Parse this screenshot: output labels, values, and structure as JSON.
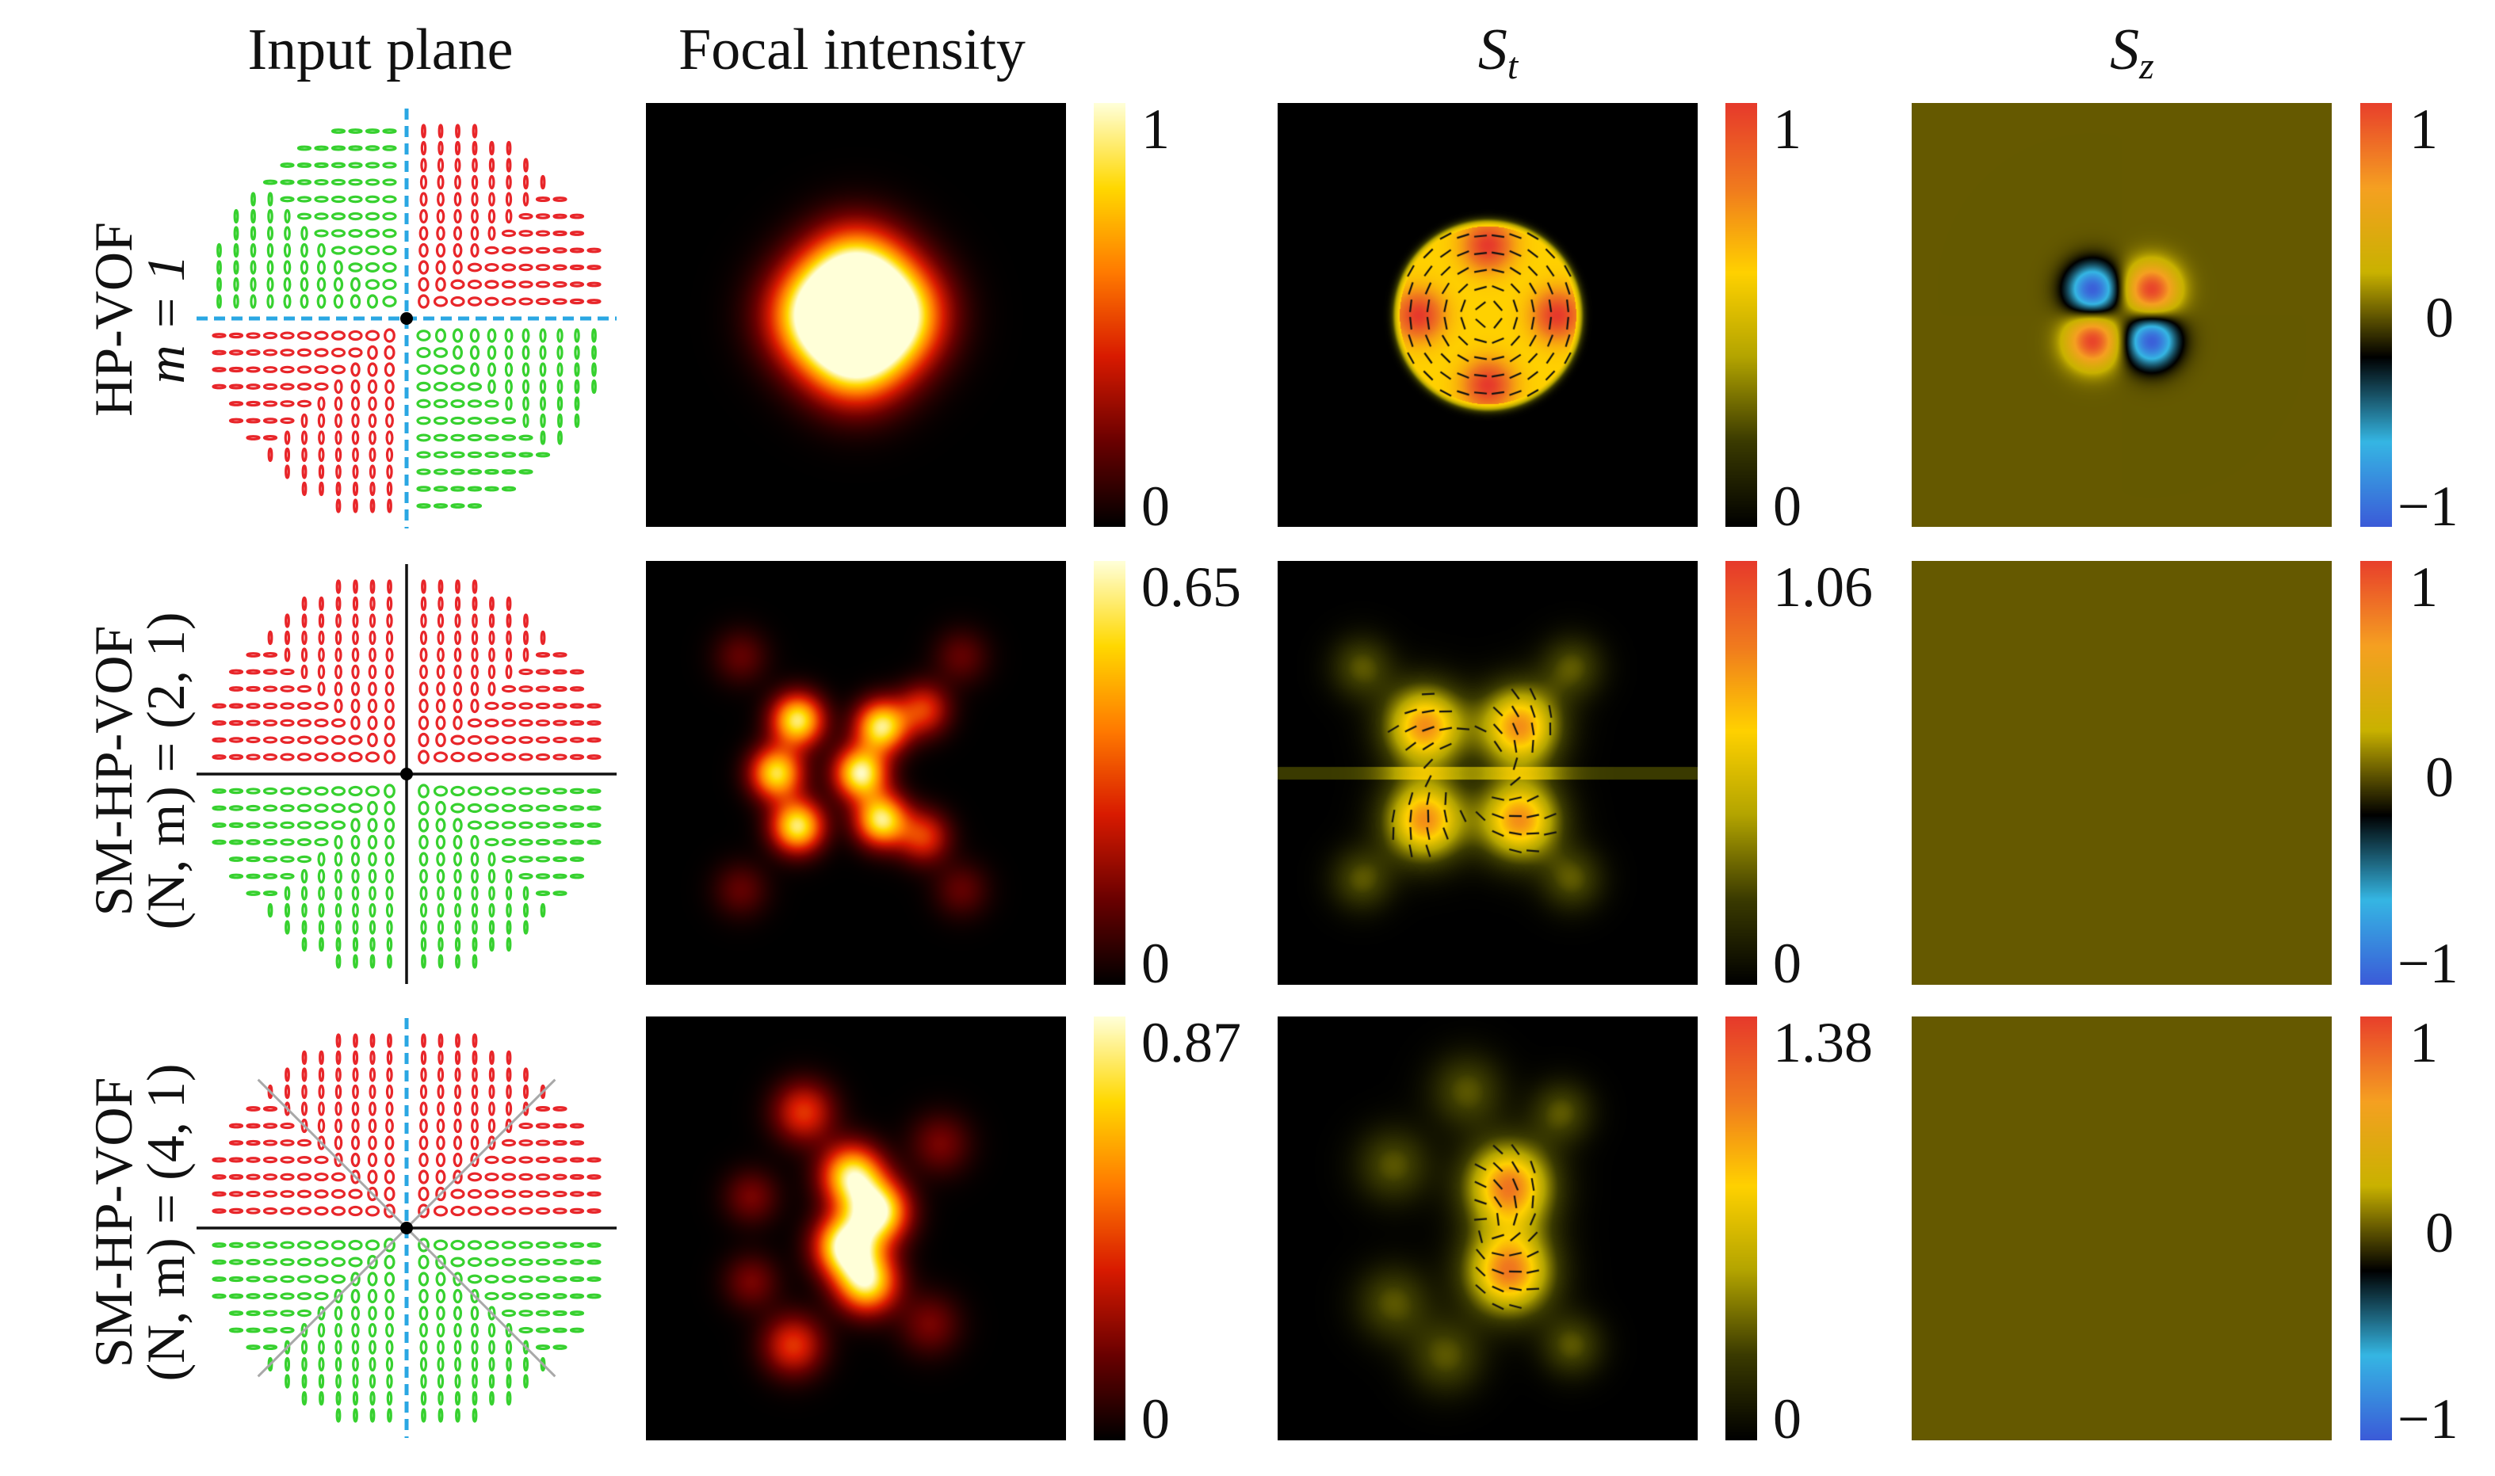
{
  "figure": {
    "column_titles": {
      "input": "Input plane",
      "focal": "Focal intensity",
      "st_base": "S",
      "st_sub": "t",
      "sz_base": "S",
      "sz_sub": "z"
    },
    "rows": [
      {
        "label_line1": "HP-VOF",
        "label_line2": "m = 1",
        "line2_italic": true,
        "focal_max": "1",
        "focal_min": "0",
        "st_max": "1",
        "st_min": "0",
        "sz_max": "1",
        "sz_mid": "0",
        "sz_min": "−1",
        "sz_field": "quadrupole"
      },
      {
        "label_line1": "SM-HP-VOF",
        "label_line2": "(N, m) = (2, 1)",
        "line2_italic": false,
        "focal_max": "0.65",
        "focal_min": "0",
        "st_max": "1.06",
        "st_min": "0",
        "sz_max": "1",
        "sz_mid": "0",
        "sz_min": "−1",
        "sz_field": "zero"
      },
      {
        "label_line1": "SM-HP-VOF",
        "label_line2": "(N, m) = (4, 1)",
        "line2_italic": false,
        "focal_max": "0.87",
        "focal_min": "0",
        "st_max": "1.38",
        "st_min": "0",
        "sz_max": "1",
        "sz_mid": "0",
        "sz_min": "−1",
        "sz_field": "zero"
      }
    ],
    "colors": {
      "polarization_red": "#e8262a",
      "polarization_green": "#37d12f",
      "polarization_cyan": "#2aa7e3",
      "divider_black": "#111111",
      "divider_gray": "#a8a8a8",
      "hot_map": [
        "#000000",
        "#6a0000",
        "#d81a00",
        "#ff7a00",
        "#ffd800",
        "#ffffd8"
      ],
      "st_map": [
        "#000000",
        "#3a3a00",
        "#b3a400",
        "#ffd100",
        "#f07a1e",
        "#e63a2b"
      ],
      "sz_map": [
        "#3b5bd8",
        "#35b6e3",
        "#000000",
        "#c9b200",
        "#f5a021",
        "#e8402b"
      ]
    }
  }
}
